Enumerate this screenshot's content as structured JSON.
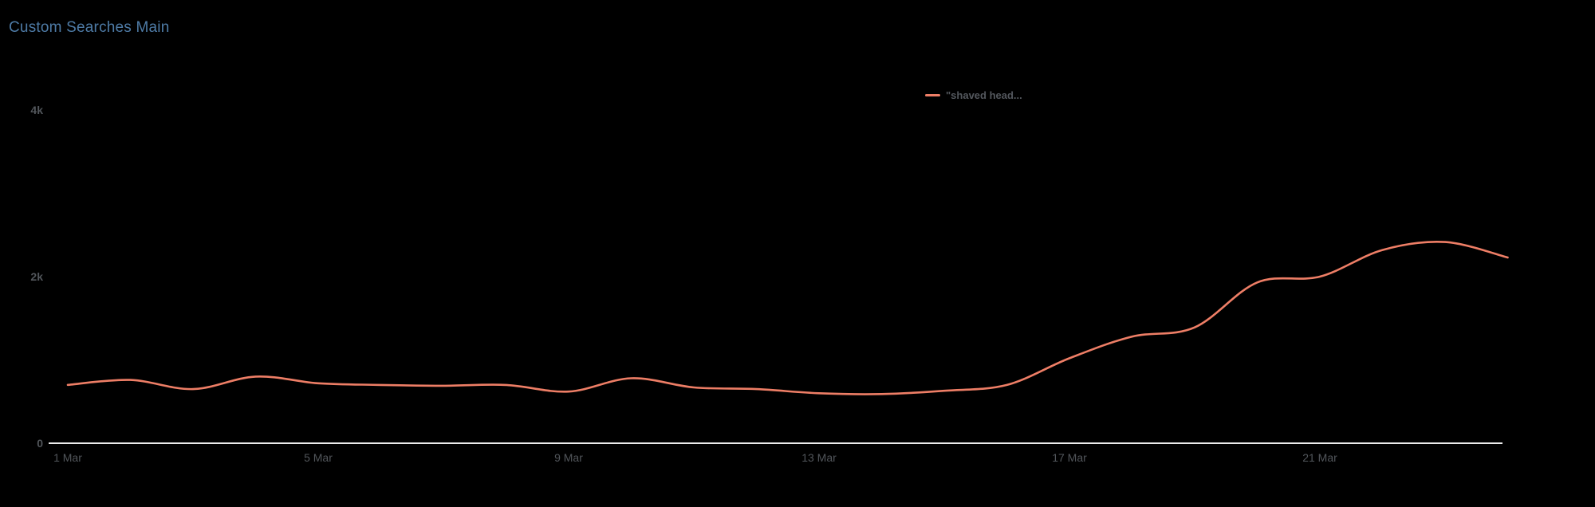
{
  "header": {
    "title": "Custom Searches Main",
    "title_color": "#4e7ba6"
  },
  "legend": {
    "items": [
      {
        "label": "\"shaved head...",
        "color": "#ee7e66"
      }
    ]
  },
  "axis": {
    "line_color": "#ececec",
    "tick_color": "#52565b"
  },
  "chart_data": {
    "type": "line",
    "title": "Custom Searches Main",
    "categories": [
      "1 Mar",
      "2 Mar",
      "3 Mar",
      "4 Mar",
      "5 Mar",
      "6 Mar",
      "7 Mar",
      "8 Mar",
      "9 Mar",
      "10 Mar",
      "11 Mar",
      "12 Mar",
      "13 Mar",
      "14 Mar",
      "15 Mar",
      "16 Mar",
      "17 Mar",
      "18 Mar",
      "19 Mar",
      "20 Mar",
      "21 Mar",
      "22 Mar",
      "23 Mar",
      "24 Mar"
    ],
    "series": [
      {
        "name": "\"shaved head...",
        "color": "#ee7e66",
        "values": [
          700,
          760,
          650,
          800,
          720,
          700,
          690,
          700,
          620,
          780,
          670,
          650,
          600,
          590,
          630,
          700,
          1020,
          1280,
          1390,
          1930,
          2000,
          2320,
          2415,
          2230
        ]
      }
    ],
    "xlabel": "",
    "ylabel": "",
    "ylim": [
      0,
      4000
    ],
    "y_ticks": [
      {
        "value": 0,
        "label": "0"
      },
      {
        "value": 2000,
        "label": "2k"
      },
      {
        "value": 4000,
        "label": "4k"
      }
    ],
    "x_ticks": [
      "1 Mar",
      "5 Mar",
      "9 Mar",
      "13 Mar",
      "17 Mar",
      "21 Mar"
    ],
    "grid": "off",
    "legend_position": "top-center"
  }
}
